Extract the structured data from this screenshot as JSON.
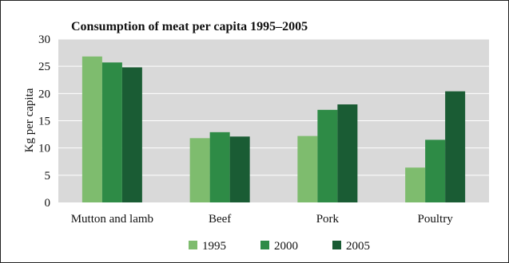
{
  "chart_data": {
    "type": "bar",
    "title": "Consumption of meat per capita 1995–2005",
    "ylabel": "Kg per capita",
    "xlabel": "",
    "ylim": [
      0,
      30
    ],
    "yticks": [
      "0",
      "5",
      "10",
      "15",
      "20",
      "25",
      "30"
    ],
    "grid": true,
    "legend_position": "bottom",
    "categories": [
      "Mutton and lamb",
      "Beef",
      "Pork",
      "Poultry"
    ],
    "series": [
      {
        "name": "1995",
        "color": "#7ebc6e",
        "values": [
          26.8,
          11.8,
          12.2,
          6.4
        ]
      },
      {
        "name": "2000",
        "color": "#2e8b46",
        "values": [
          25.7,
          12.9,
          17.0,
          11.5
        ]
      },
      {
        "name": "2005",
        "color": "#1a5c34",
        "values": [
          24.8,
          12.1,
          18.0,
          20.4
        ]
      }
    ],
    "plot_background": "#d9d9d9",
    "grid_color": "#ffffff"
  }
}
